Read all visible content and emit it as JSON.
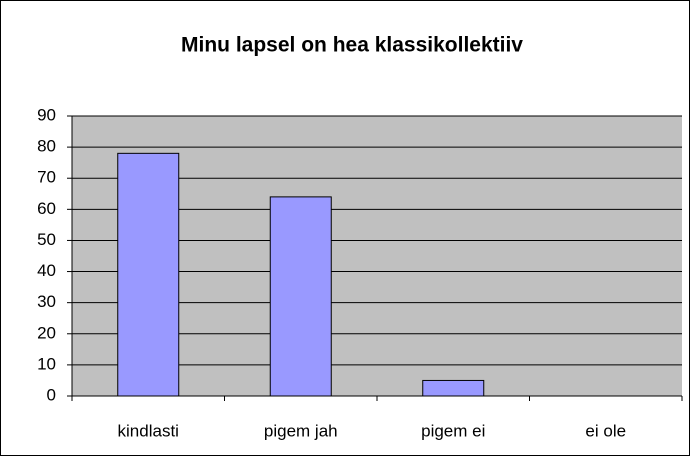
{
  "chart_data": {
    "type": "bar",
    "title": "Minu lapsel on hea klassikollektiiv",
    "categories": [
      "kindlasti",
      "pigem jah",
      "pigem ei",
      "ei ole"
    ],
    "values": [
      78,
      64,
      5,
      0
    ],
    "color": "#9999ff",
    "ylim": [
      0,
      90
    ],
    "yticks": [
      0,
      10,
      20,
      30,
      40,
      50,
      60,
      70,
      80,
      90
    ],
    "grid": true
  }
}
